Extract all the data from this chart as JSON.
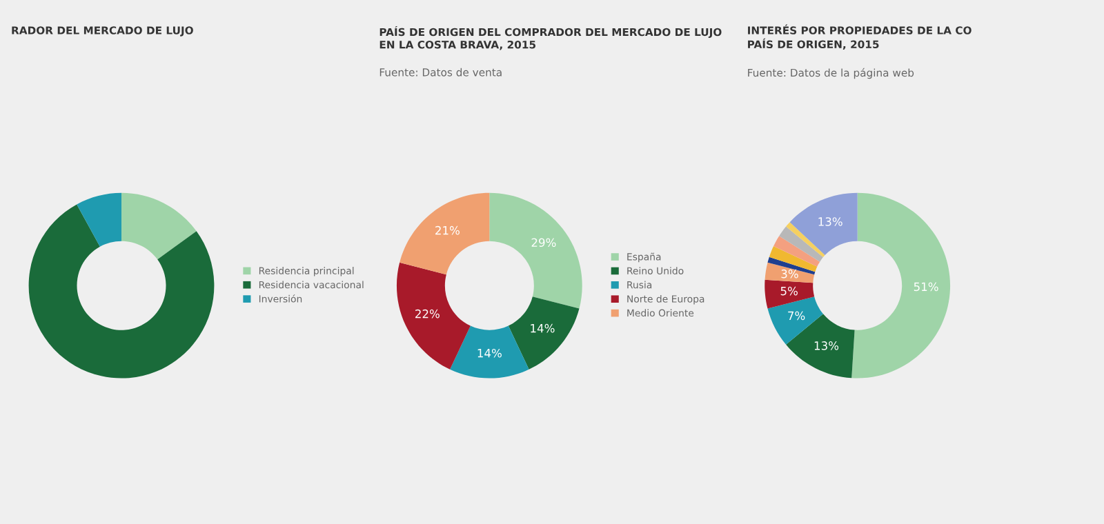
{
  "chart_data": [
    {
      "type": "donut",
      "title": "RADOR DEL MERCADO DE LUJO",
      "categories": [
        "Residencia principal",
        "Residencia vacacional",
        "Inversión"
      ],
      "values": [
        15,
        77,
        8
      ],
      "colors": [
        "#9fd4a8",
        "#1a6b3a",
        "#1f9bb0"
      ],
      "legend": "right"
    },
    {
      "type": "donut",
      "title": "PAÍS DE ORIGEN DEL COMPRADOR DEL MERCADO DE LUJO\nEN LA COSTA BRAVA, 2015",
      "subtitle": "Fuente: Datos de venta",
      "categories": [
        "España",
        "Reino Unido",
        "Rusia",
        "Norte de Europa",
        "Medio Oriente"
      ],
      "values": [
        29,
        14,
        14,
        22,
        21
      ],
      "colors": [
        "#9fd4a8",
        "#1a6b3a",
        "#1f9bb0",
        "#a81a2a",
        "#f0a070"
      ],
      "value_labels": [
        "29%",
        "14%",
        "14%",
        "22%",
        "21%"
      ],
      "legend": "right"
    },
    {
      "type": "donut",
      "title": "INTERÉS POR PROPIEDADES DE LA CO\nPAÍS DE ORIGEN, 2015",
      "subtitle": "Fuente: Datos de la página web",
      "categories": [
        null,
        null,
        null,
        null,
        null,
        null,
        null,
        null,
        null,
        null,
        null
      ],
      "values": [
        51,
        13,
        7,
        5,
        3,
        1,
        2,
        2,
        2,
        1,
        13
      ],
      "colors": [
        "#9fd4a8",
        "#1a6b3a",
        "#1f9bb0",
        "#a81a2a",
        "#f0a070",
        "#1f3f8f",
        "#f0b830",
        "#f4a080",
        "#b8b8b8",
        "#f5d060",
        "#8fa0d8"
      ],
      "value_labels": [
        "51%",
        "13%",
        "7%",
        "5%",
        "3%",
        null,
        null,
        null,
        null,
        null,
        "13%"
      ]
    }
  ]
}
